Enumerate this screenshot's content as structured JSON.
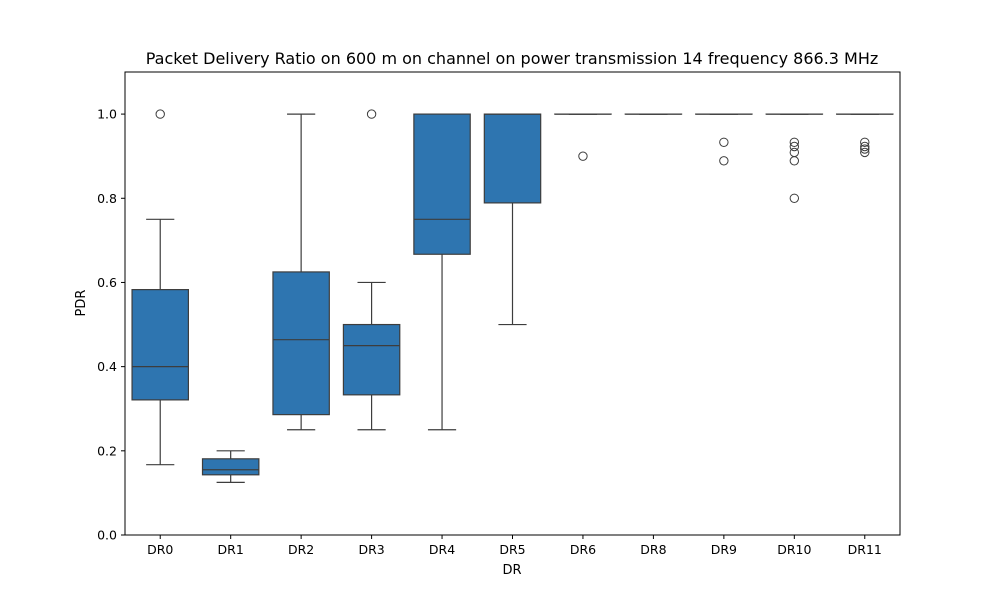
{
  "chart_data": {
    "type": "box",
    "title": "Packet Delivery Ratio on 600 m on channel on power transmission 14 frequency 866.3 MHz",
    "xlabel": "DR",
    "ylabel": "PDR",
    "ylim": [
      0,
      1.1
    ],
    "yticks": [
      "0.0",
      "0.2",
      "0.4",
      "0.6",
      "0.8",
      "1.0"
    ],
    "grid": false,
    "box_color": "#2e75b0",
    "line_color": "#3d3d3d",
    "categories": [
      "DR0",
      "DR1",
      "DR2",
      "DR3",
      "DR4",
      "DR5",
      "DR6",
      "DR8",
      "DR9",
      "DR10",
      "DR11"
    ],
    "boxes": [
      {
        "category": "DR0",
        "whisker_low": 0.167,
        "q1": 0.321,
        "median": 0.4,
        "q3": 0.583,
        "whisker_high": 0.75,
        "outliers": [
          1.0
        ]
      },
      {
        "category": "DR1",
        "whisker_low": 0.125,
        "q1": 0.143,
        "median": 0.155,
        "q3": 0.181,
        "whisker_high": 0.2,
        "outliers": []
      },
      {
        "category": "DR2",
        "whisker_low": 0.25,
        "q1": 0.286,
        "median": 0.464,
        "q3": 0.625,
        "whisker_high": 1.0,
        "outliers": []
      },
      {
        "category": "DR3",
        "whisker_low": 0.25,
        "q1": 0.333,
        "median": 0.45,
        "q3": 0.5,
        "whisker_high": 0.6,
        "outliers": [
          1.0
        ]
      },
      {
        "category": "DR4",
        "whisker_low": 0.25,
        "q1": 0.667,
        "median": 0.75,
        "q3": 1.0,
        "whisker_high": 1.0,
        "outliers": []
      },
      {
        "category": "DR5",
        "whisker_low": 0.5,
        "q1": 0.789,
        "median": 1.0,
        "q3": 1.0,
        "whisker_high": 1.0,
        "outliers": []
      },
      {
        "category": "DR6",
        "whisker_low": 1.0,
        "q1": 1.0,
        "median": 1.0,
        "q3": 1.0,
        "whisker_high": 1.0,
        "outliers": [
          0.9
        ]
      },
      {
        "category": "DR8",
        "whisker_low": 1.0,
        "q1": 1.0,
        "median": 1.0,
        "q3": 1.0,
        "whisker_high": 1.0,
        "outliers": []
      },
      {
        "category": "DR9",
        "whisker_low": 1.0,
        "q1": 1.0,
        "median": 1.0,
        "q3": 1.0,
        "whisker_high": 1.0,
        "outliers": [
          0.933,
          0.889
        ]
      },
      {
        "category": "DR10",
        "whisker_low": 1.0,
        "q1": 1.0,
        "median": 1.0,
        "q3": 1.0,
        "whisker_high": 1.0,
        "outliers": [
          0.933,
          0.923,
          0.909,
          0.889,
          0.8
        ]
      },
      {
        "category": "DR11",
        "whisker_low": 1.0,
        "q1": 1.0,
        "median": 1.0,
        "q3": 1.0,
        "whisker_high": 1.0,
        "outliers": [
          0.933,
          0.923,
          0.917,
          0.909
        ]
      }
    ]
  }
}
